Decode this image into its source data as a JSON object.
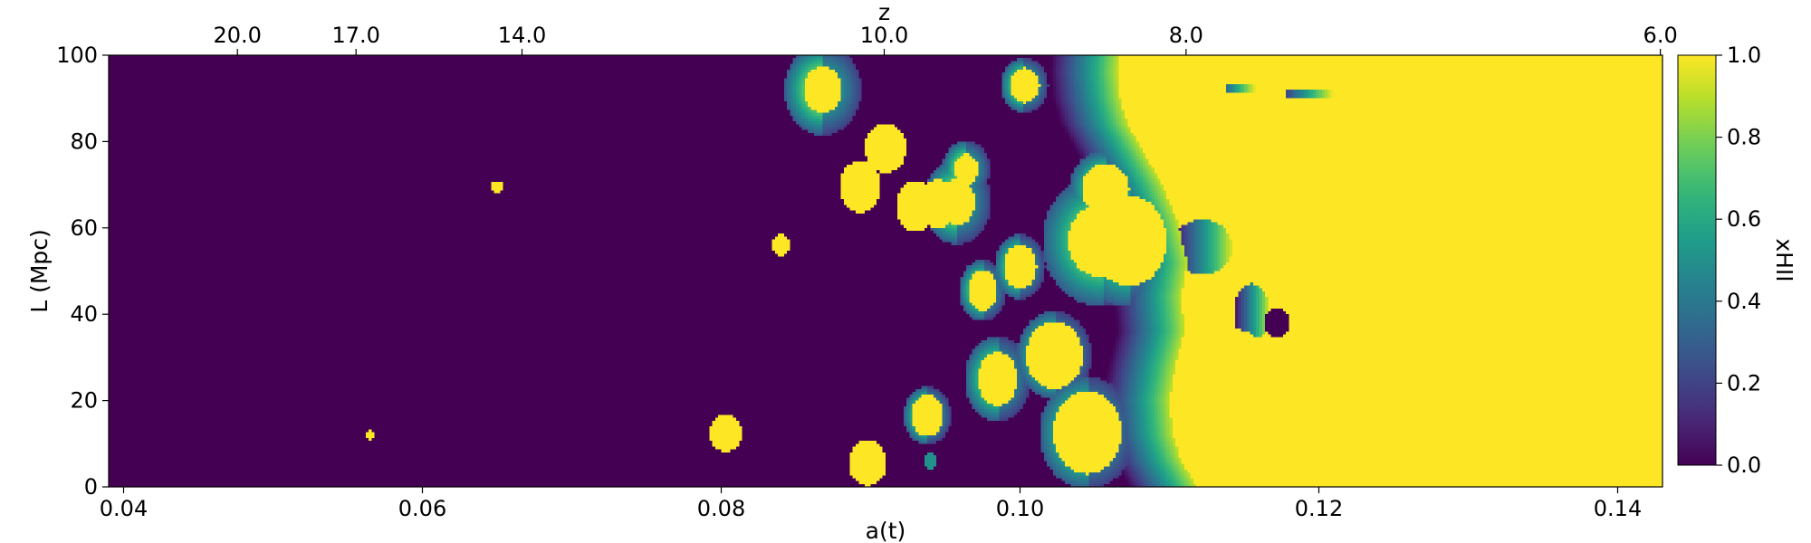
{
  "chart_data": {
    "type": "heatmap",
    "title": "",
    "xlabel": "a(t)",
    "ylabel": "L (Mpc)",
    "top_xlabel": "z",
    "xlim": [
      0.039,
      0.143
    ],
    "ylim": [
      0,
      100
    ],
    "x_ticks": [
      {
        "value": 0.04,
        "label": "0.04"
      },
      {
        "value": 0.06,
        "label": "0.06"
      },
      {
        "value": 0.08,
        "label": "0.08"
      },
      {
        "value": 0.1,
        "label": "0.10"
      },
      {
        "value": 0.12,
        "label": "0.12"
      },
      {
        "value": 0.14,
        "label": "0.14"
      }
    ],
    "y_ticks": [
      {
        "value": 0,
        "label": "0"
      },
      {
        "value": 20,
        "label": "20"
      },
      {
        "value": 40,
        "label": "40"
      },
      {
        "value": 60,
        "label": "60"
      },
      {
        "value": 80,
        "label": "80"
      },
      {
        "value": 100,
        "label": "100"
      }
    ],
    "z_ticks": [
      {
        "value": 20.0,
        "label": "20.0"
      },
      {
        "value": 17.0,
        "label": "17.0"
      },
      {
        "value": 14.0,
        "label": "14.0"
      },
      {
        "value": 10.0,
        "label": "10.0"
      },
      {
        "value": 8.0,
        "label": "8.0"
      },
      {
        "value": 6.0,
        "label": "6.0"
      }
    ],
    "colorbar": {
      "label": "xHII",
      "range": [
        0.0,
        1.0
      ],
      "colormap": "viridis",
      "ticks": [
        {
          "value": 0.0,
          "label": "0.0"
        },
        {
          "value": 0.2,
          "label": "0.2"
        },
        {
          "value": 0.4,
          "label": "0.4"
        },
        {
          "value": 0.6,
          "label": "0.6"
        },
        {
          "value": 0.8,
          "label": "0.8"
        },
        {
          "value": 1.0,
          "label": "1.0"
        }
      ]
    },
    "background_value": 0.0,
    "reionized_front": {
      "value": 1.0,
      "boundary": [
        [
          0.1118,
          0
        ],
        [
          0.1108,
          6
        ],
        [
          0.1102,
          12
        ],
        [
          0.11,
          20
        ],
        [
          0.1104,
          28
        ],
        [
          0.111,
          36
        ],
        [
          0.1108,
          44
        ],
        [
          0.1112,
          52
        ],
        [
          0.1105,
          62
        ],
        [
          0.1095,
          70
        ],
        [
          0.1082,
          78
        ],
        [
          0.1072,
          84
        ],
        [
          0.1067,
          90
        ],
        [
          0.1065,
          96
        ],
        [
          0.1066,
          100
        ]
      ],
      "gradient_tail": 0.0045
    },
    "bubbles": [
      {
        "a": 0.0565,
        "L": 12.0,
        "ra": 0.0003,
        "rL": 1.0,
        "value": 1.0
      },
      {
        "a": 0.065,
        "L": 69.5,
        "ra": 0.0004,
        "rL": 1.4,
        "value": 1.0
      },
      {
        "a": 0.0803,
        "L": 12.5,
        "ra": 0.0011,
        "rL": 4.3,
        "value": 1.0
      },
      {
        "a": 0.084,
        "L": 56.0,
        "ra": 0.0006,
        "rL": 2.4,
        "value": 1.0
      },
      {
        "a": 0.0868,
        "L": 92.0,
        "ra": 0.0013,
        "rL": 5.4,
        "value": 1.0,
        "halo": 0.0013
      },
      {
        "a": 0.0898,
        "L": 5.5,
        "ra": 0.0013,
        "rL": 5.3,
        "value": 1.0
      },
      {
        "a": 0.0893,
        "L": 69.5,
        "ra": 0.0014,
        "rL": 6.0,
        "value": 1.0
      },
      {
        "a": 0.091,
        "L": 78.5,
        "ra": 0.0014,
        "rL": 5.8,
        "value": 1.0
      },
      {
        "a": 0.093,
        "L": 65.0,
        "ra": 0.0013,
        "rL": 5.8,
        "value": 1.0
      },
      {
        "a": 0.0945,
        "L": 65.5,
        "ra": 0.0012,
        "rL": 5.6,
        "value": 1.0
      },
      {
        "a": 0.0958,
        "L": 66.0,
        "ra": 0.0012,
        "rL": 5.5,
        "value": 1.0,
        "halo": 0.0011
      },
      {
        "a": 0.0964,
        "L": 73.5,
        "ra": 0.0008,
        "rL": 3.6,
        "value": 1.0,
        "halo": 0.0008
      },
      {
        "a": 0.0938,
        "L": 16.5,
        "ra": 0.0011,
        "rL": 4.8,
        "value": 1.0,
        "halo": 0.0005
      },
      {
        "a": 0.094,
        "L": 6.0,
        "ra": 0.0004,
        "rL": 1.8,
        "value": 0.5
      },
      {
        "a": 0.0975,
        "L": 45.5,
        "ra": 0.001,
        "rL": 4.7,
        "value": 1.0,
        "halo": 0.0006
      },
      {
        "a": 0.0985,
        "L": 25.0,
        "ra": 0.0013,
        "rL": 6.3,
        "value": 1.0,
        "halo": 0.0009
      },
      {
        "a": 0.1,
        "L": 51.0,
        "ra": 0.0011,
        "rL": 5.2,
        "value": 1.0,
        "halo": 0.0006
      },
      {
        "a": 0.1003,
        "L": 93.0,
        "ra": 0.001,
        "rL": 4.0,
        "value": 1.0,
        "halo": 0.0006
      },
      {
        "a": 0.1023,
        "L": 30.5,
        "ra": 0.0019,
        "rL": 7.8,
        "value": 1.0,
        "halo": 0.0006
      },
      {
        "a": 0.1045,
        "L": 12.5,
        "ra": 0.0023,
        "rL": 9.5,
        "value": 1.0,
        "halo": 0.0009
      },
      {
        "a": 0.1055,
        "L": 57.0,
        "ra": 0.0023,
        "rL": 8.5,
        "value": 1.0,
        "halo": 0.0017
      },
      {
        "a": 0.1073,
        "L": 57.0,
        "ra": 0.0025,
        "rL": 10.5,
        "value": 1.0,
        "halo": 0.0012
      },
      {
        "a": 0.1057,
        "L": 69.0,
        "ra": 0.0016,
        "rL": 5.8,
        "value": 1.0,
        "halo": 0.0008
      },
      {
        "a": 0.113,
        "L": 41.0,
        "ra": 0.0012,
        "rL": 6.0,
        "value": 1.0
      },
      {
        "a": 0.1145,
        "L": 27.5,
        "ra": 0.002,
        "rL": 9.0,
        "value": 1.0
      },
      {
        "a": 0.1118,
        "L": 20.0,
        "ra": 0.0016,
        "rL": 8.0,
        "value": 1.0
      }
    ],
    "neutral_patches": [
      {
        "a": 0.1122,
        "L": 55.5,
        "ra": 0.002,
        "rL": 6.5,
        "value": 0.0,
        "ramp": true
      },
      {
        "a": 0.1155,
        "L": 40.5,
        "ra": 0.0012,
        "rL": 6.5,
        "value": 0.0,
        "ramp": true
      },
      {
        "a": 0.1172,
        "L": 38.0,
        "ra": 0.0008,
        "rL": 3.5,
        "value": 0.0
      }
    ],
    "streaks": [
      {
        "a0": 0.1138,
        "a1": 0.1158,
        "L": 92.5,
        "value": 0.35
      },
      {
        "a0": 0.1178,
        "a1": 0.121,
        "L": 91.0,
        "value": 0.2
      }
    ]
  }
}
